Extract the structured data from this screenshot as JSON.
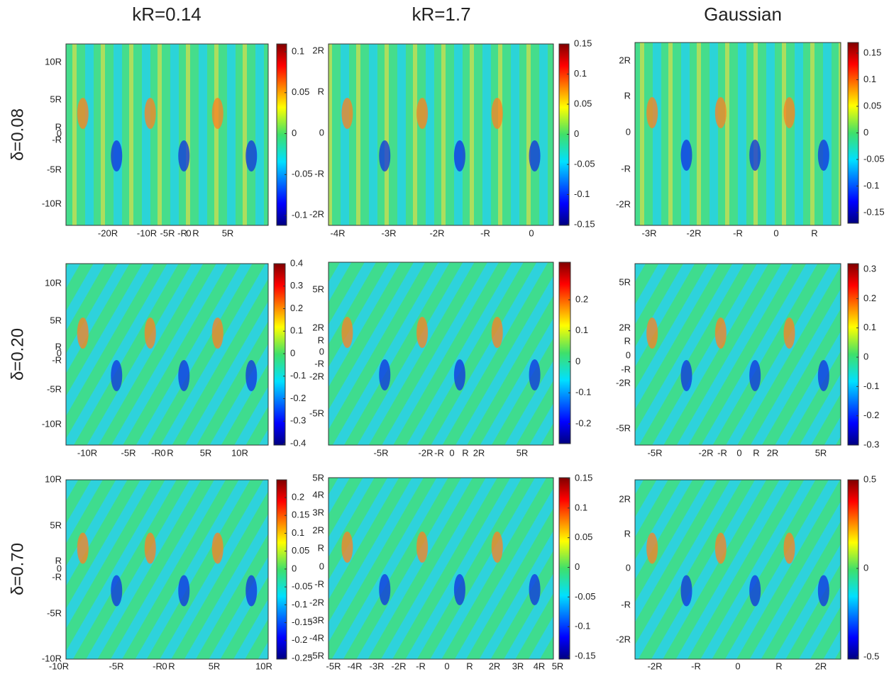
{
  "columns": [
    "kR=0.14",
    "kR=1.7",
    "Gaussian"
  ],
  "rows": [
    "δ=0.08",
    "δ=0.20",
    "δ=0.70"
  ],
  "panels": [
    {
      "xticks": [
        "-20R",
        "-10R",
        "-5R",
        "-R",
        "0",
        "R",
        "5R"
      ],
      "yticks": [
        "10R",
        "5R",
        "R",
        "0",
        "-R",
        "-5R",
        "-10R"
      ],
      "colorbar": [
        0.1,
        0.05,
        0,
        -0.05,
        -0.1
      ]
    },
    {
      "xticks": [
        "-4R",
        "-3R",
        "-2R",
        "-R",
        "0"
      ],
      "yticks": [
        "2R",
        "R",
        "0",
        "-R",
        "-2R"
      ],
      "colorbar": [
        0.15,
        0.1,
        0.05,
        0,
        -0.05,
        -0.1,
        -0.15
      ]
    },
    {
      "xticks": [
        "-3R",
        "-2R",
        "-R",
        "0",
        "R"
      ],
      "yticks": [
        "2R",
        "R",
        "0",
        "-R",
        "-2R"
      ],
      "colorbar": [
        0.15,
        0.1,
        0.05,
        0,
        -0.05,
        -0.1,
        -0.15
      ]
    },
    {
      "xticks": [
        "-10R",
        "-5R",
        "-R",
        "0",
        "R",
        "5R",
        "10R"
      ],
      "yticks": [
        "10R",
        "5R",
        "R",
        "0",
        "-R",
        "-5R",
        "-10R"
      ],
      "colorbar": [
        0.4,
        0.3,
        0.2,
        0.1,
        0,
        -0.1,
        -0.2,
        -0.3,
        -0.4
      ]
    },
    {
      "xticks": [
        "-5R",
        "-2R",
        "-R",
        "0",
        "R",
        "2R",
        "5R"
      ],
      "yticks": [
        "5R",
        "2R",
        "R",
        "0",
        "-R",
        "-2R",
        "-5R"
      ],
      "colorbar": [
        0.2,
        0.1,
        0,
        -0.1,
        -0.2
      ]
    },
    {
      "xticks": [
        "-5R",
        "-2R",
        "-R",
        "0",
        "R",
        "2R",
        "5R"
      ],
      "yticks": [
        "5R",
        "2R",
        "R",
        "0",
        "-R",
        "-2R",
        "-5R"
      ],
      "colorbar": [
        0.3,
        0.2,
        0.1,
        0,
        -0.1,
        -0.2,
        -0.3
      ]
    },
    {
      "xticks": [
        "-10R",
        "-5R",
        "-R",
        "0",
        "R",
        "5R",
        "10R"
      ],
      "yticks": [
        "10R",
        "5R",
        "R",
        "0",
        "-R",
        "-5R",
        "-10R"
      ],
      "colorbar": [
        0.2,
        0.15,
        0.1,
        0.05,
        0,
        -0.05,
        -0.1,
        -0.15,
        -0.2,
        -0.25
      ]
    },
    {
      "xticks": [
        "-5R",
        "-4R",
        "-3R",
        "-2R",
        "-R",
        "0",
        "R",
        "2R",
        "3R",
        "4R",
        "5R"
      ],
      "yticks": [
        "5R",
        "4R",
        "3R",
        "2R",
        "R",
        "0",
        "-R",
        "-2R",
        "-3R",
        "-4R",
        "-5R"
      ],
      "colorbar": [
        0.15,
        0.1,
        0.05,
        0,
        -0.05,
        -0.1,
        -0.15
      ]
    },
    {
      "xticks": [
        "-2R",
        "-R",
        "0",
        "R",
        "2R"
      ],
      "yticks": [
        "2R",
        "R",
        "0",
        "-R",
        "-2R"
      ],
      "colorbar": [
        0.5,
        0,
        -0.5
      ]
    }
  ]
}
